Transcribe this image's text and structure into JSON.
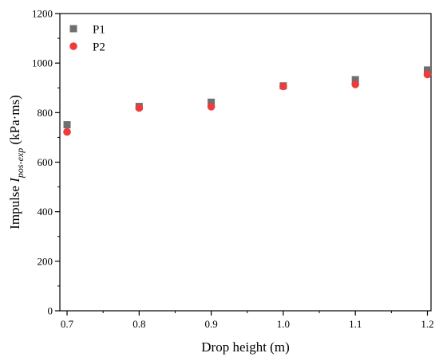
{
  "chart_data": {
    "type": "scatter",
    "x": [
      0.7,
      0.8,
      0.9,
      1.0,
      1.1,
      1.2
    ],
    "series": [
      {
        "name": "P1",
        "marker": "square",
        "color": "#6f6f6f",
        "values": [
          751,
          825,
          842,
          908,
          933,
          972
        ]
      },
      {
        "name": "P2",
        "marker": "circle",
        "color": "#ee3b3b",
        "values": [
          722,
          819,
          824,
          906,
          914,
          954
        ]
      }
    ],
    "xlabel": "Drop height (m)",
    "ylabel": {
      "prefix": "Impulse ",
      "symbol": "I",
      "subscript": "pos-exp",
      "suffix": " (kPa·ms)"
    },
    "xlim": [
      0.69,
      1.205
    ],
    "ylim": [
      0,
      1200
    ],
    "xticks": [
      "0.7",
      "0.8",
      "0.9",
      "1.0",
      "1.1",
      "1.2"
    ],
    "yticks": [
      "0",
      "200",
      "400",
      "600",
      "800",
      "1000",
      "1200"
    ],
    "legend_position": "top-left",
    "grid": false
  }
}
